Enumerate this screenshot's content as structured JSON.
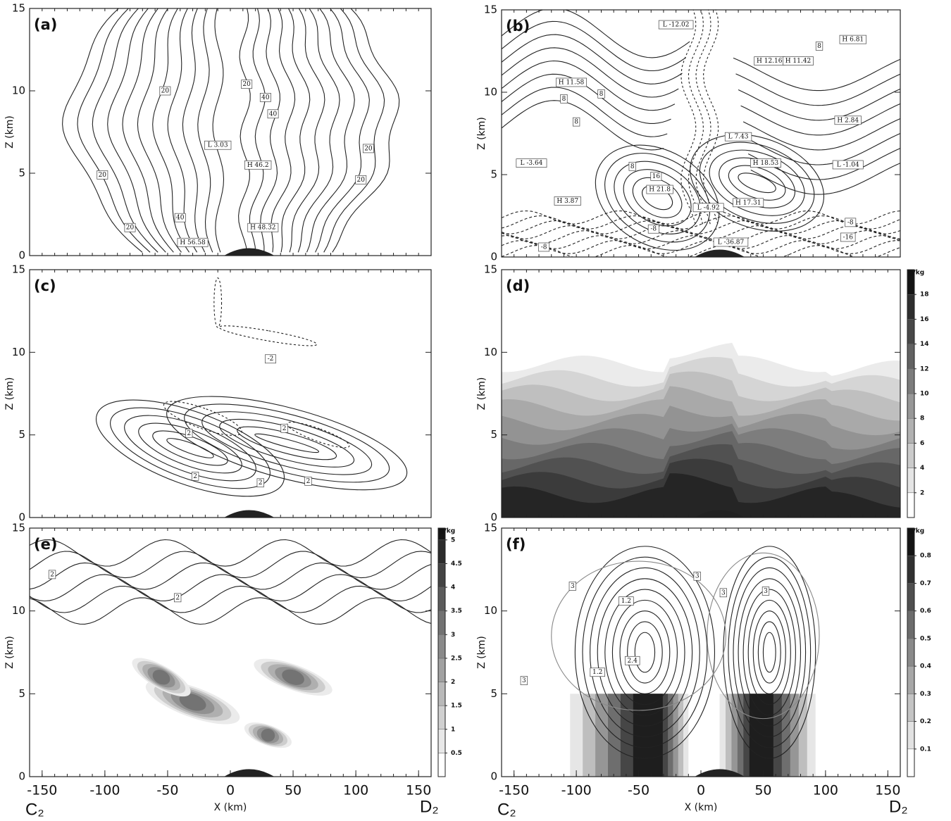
{
  "chart_data": [
    {
      "type": "contour",
      "panel": "(a)",
      "ylabel": "Z (km)",
      "ylim": [
        0,
        15
      ],
      "yticks": [
        0,
        5,
        10,
        15
      ],
      "xlim": [
        -160,
        160
      ],
      "annotations": [
        "20",
        "20",
        "40",
        "H 56.58",
        "L 3.03",
        "20",
        "40",
        "40",
        "H 46.2",
        "H 48.32",
        "20",
        "20",
        "20"
      ]
    },
    {
      "type": "contour",
      "panel": "(b)",
      "ylabel": "Z (km)",
      "ylim": [
        0,
        15
      ],
      "yticks": [
        0,
        5,
        10,
        15
      ],
      "xlim": [
        -160,
        160
      ],
      "annotations": [
        "H 6.81",
        "L -12.02",
        "H 12.16",
        "H 11.42",
        "8",
        "H 11.58",
        "8",
        "8",
        "8",
        "L -3.64",
        "8",
        "16",
        "H 21.8",
        "H 3.87",
        "L 7.43",
        "H 18.53",
        "L -1.04",
        "H 2.84",
        "L -4.92",
        "H 17.31",
        "-8",
        "-8",
        "-16",
        "-8",
        "L -36.87"
      ]
    },
    {
      "type": "contour",
      "panel": "(c)",
      "ylabel": "Z (km)",
      "ylim": [
        0,
        15
      ],
      "yticks": [
        0,
        5,
        10,
        15
      ],
      "xlim": [
        -160,
        160
      ],
      "annotations": [
        "2",
        "2",
        "2",
        "2",
        "2",
        "-2"
      ]
    },
    {
      "type": "filled-contour",
      "panel": "(d)",
      "ylabel": "Z (km)",
      "ylim": [
        0,
        15
      ],
      "yticks": [
        0,
        5,
        10,
        15
      ],
      "xlim": [
        -160,
        160
      ],
      "colorbar": {
        "unit": "g/kg",
        "lim": [
          0,
          20
        ],
        "ticks": [
          2,
          4,
          6,
          8,
          10,
          12,
          14,
          16,
          18
        ]
      }
    },
    {
      "type": "filled-contour",
      "panel": "(e)",
      "ylabel": "Z (km)",
      "ylim": [
        0,
        15
      ],
      "yticks": [
        0,
        5,
        10,
        15
      ],
      "xlim": [
        -160,
        160
      ],
      "xticks": [
        -150,
        -100,
        -50,
        0,
        50,
        100,
        150
      ],
      "xlabel": "X (km)",
      "start_label": "C₂",
      "end_label": "D₂",
      "annotations": [
        "2",
        "2"
      ],
      "colorbar": {
        "unit": "g/kg",
        "lim": [
          0,
          5.25
        ],
        "ticks": [
          0.5,
          1,
          1.5,
          2,
          2.5,
          3,
          3.5,
          4,
          4.5,
          5
        ]
      }
    },
    {
      "type": "filled-contour",
      "panel": "(f)",
      "ylabel": "Z (km)",
      "ylim": [
        0,
        15
      ],
      "yticks": [
        0,
        5,
        10,
        15
      ],
      "xlim": [
        -160,
        160
      ],
      "xticks": [
        -150,
        -100,
        -50,
        0,
        50,
        100,
        150
      ],
      "xlabel": "X (km)",
      "start_label": "C₂",
      "end_label": "D₂",
      "annotations": [
        "3",
        "3",
        "3",
        "3",
        "1.2",
        "2.4",
        "1.2",
        "3"
      ],
      "colorbar": {
        "unit": "g/kg",
        "lim": [
          0,
          0.9
        ],
        "ticks": [
          0.1,
          0.2,
          0.3,
          0.4,
          0.5,
          0.6,
          0.7,
          0.8
        ]
      }
    }
  ]
}
